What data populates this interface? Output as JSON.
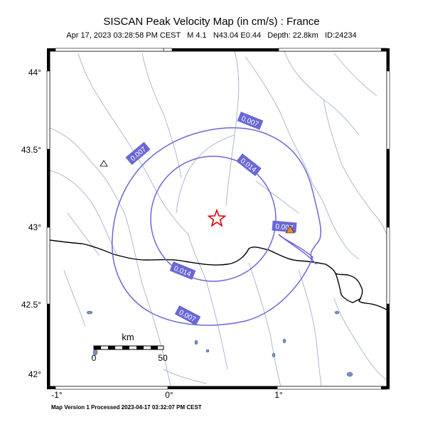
{
  "header": {
    "title": "SISCAN Peak Velocity Map (in cm/s) : France",
    "subtitle": "Apr 17, 2023 03:28:58 PM CEST   M 4.1   N43.04 E0.44   Depth: 22.8km   ID:24234"
  },
  "footer": {
    "text": "Map Version 1 Processed 2023-04-17 03:32:07 PM CEST"
  },
  "axes": {
    "lat_labels": [
      "44°",
      "43.5°",
      "43°",
      "42.5°",
      "42°"
    ],
    "lon_labels": [
      "-1°",
      "0°",
      "1°"
    ]
  },
  "contours": {
    "outer_label": "0.007",
    "inner_label": "0.014"
  },
  "scale_bar": {
    "unit": "km",
    "start": "0",
    "end": "50"
  },
  "colors": {
    "contour": "#6a67d6",
    "river": "#aab8d4",
    "border": "#000000",
    "label_bg": "#6a67d6",
    "epicenter": "#e00000",
    "station": "#e88f2a"
  }
}
